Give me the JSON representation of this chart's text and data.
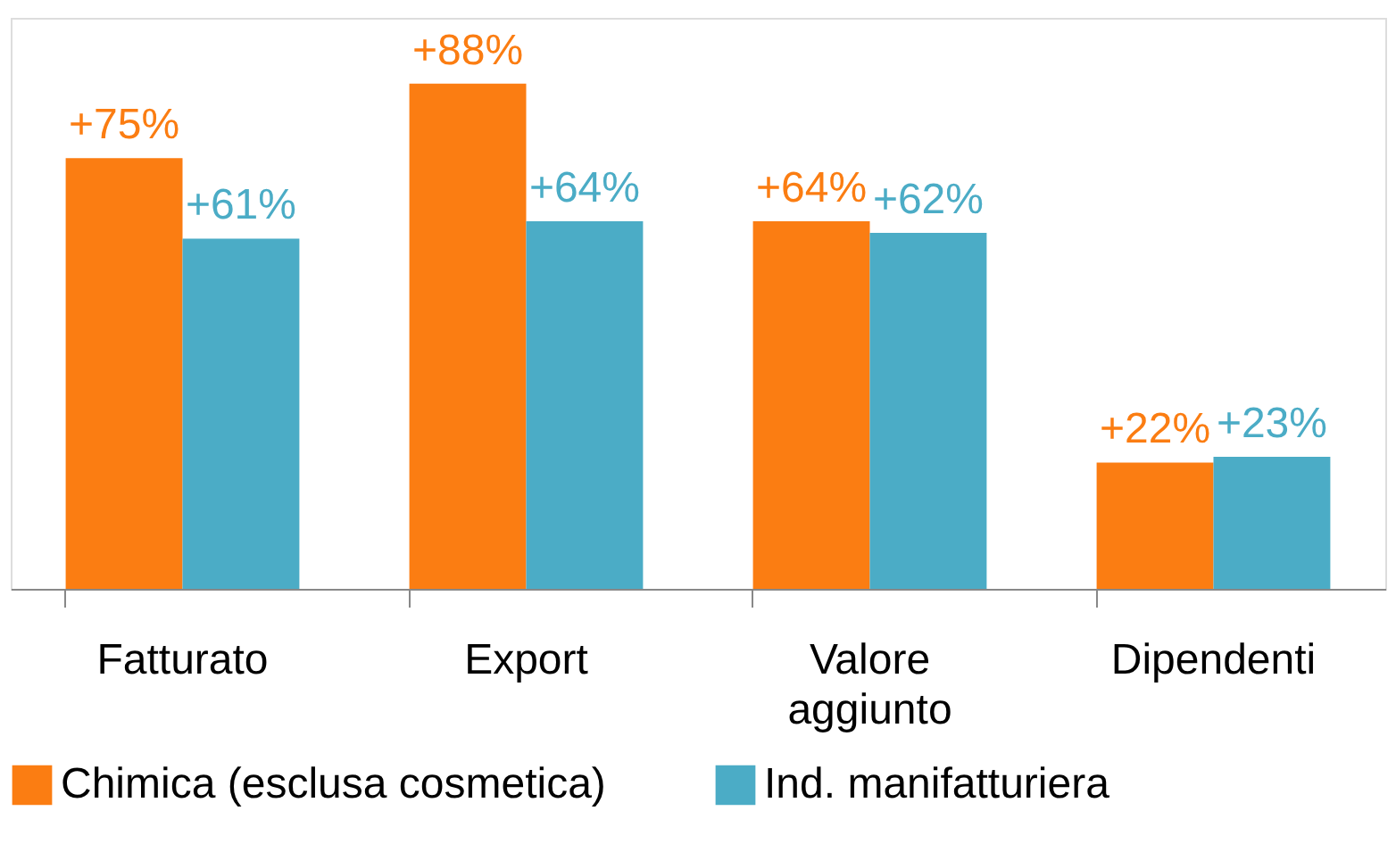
{
  "chart_data": {
    "type": "bar",
    "categories": [
      "Fatturato",
      "Export",
      "Valore aggiunto",
      "Dipendenti"
    ],
    "series": [
      {
        "name": "Chimica (esclusa cosmetica)",
        "color": "#fb7d12",
        "values": [
          75,
          88,
          64,
          22
        ],
        "value_labels": [
          "+75%",
          "+88%",
          "+64%",
          "+22%"
        ]
      },
      {
        "name": "Ind. manifatturiera",
        "color": "#4bacc6",
        "values": [
          61,
          64,
          62,
          23
        ],
        "value_labels": [
          "+61%",
          "+64%",
          "+62%",
          "+23%"
        ]
      }
    ],
    "legend": "bottom",
    "grid": false
  }
}
